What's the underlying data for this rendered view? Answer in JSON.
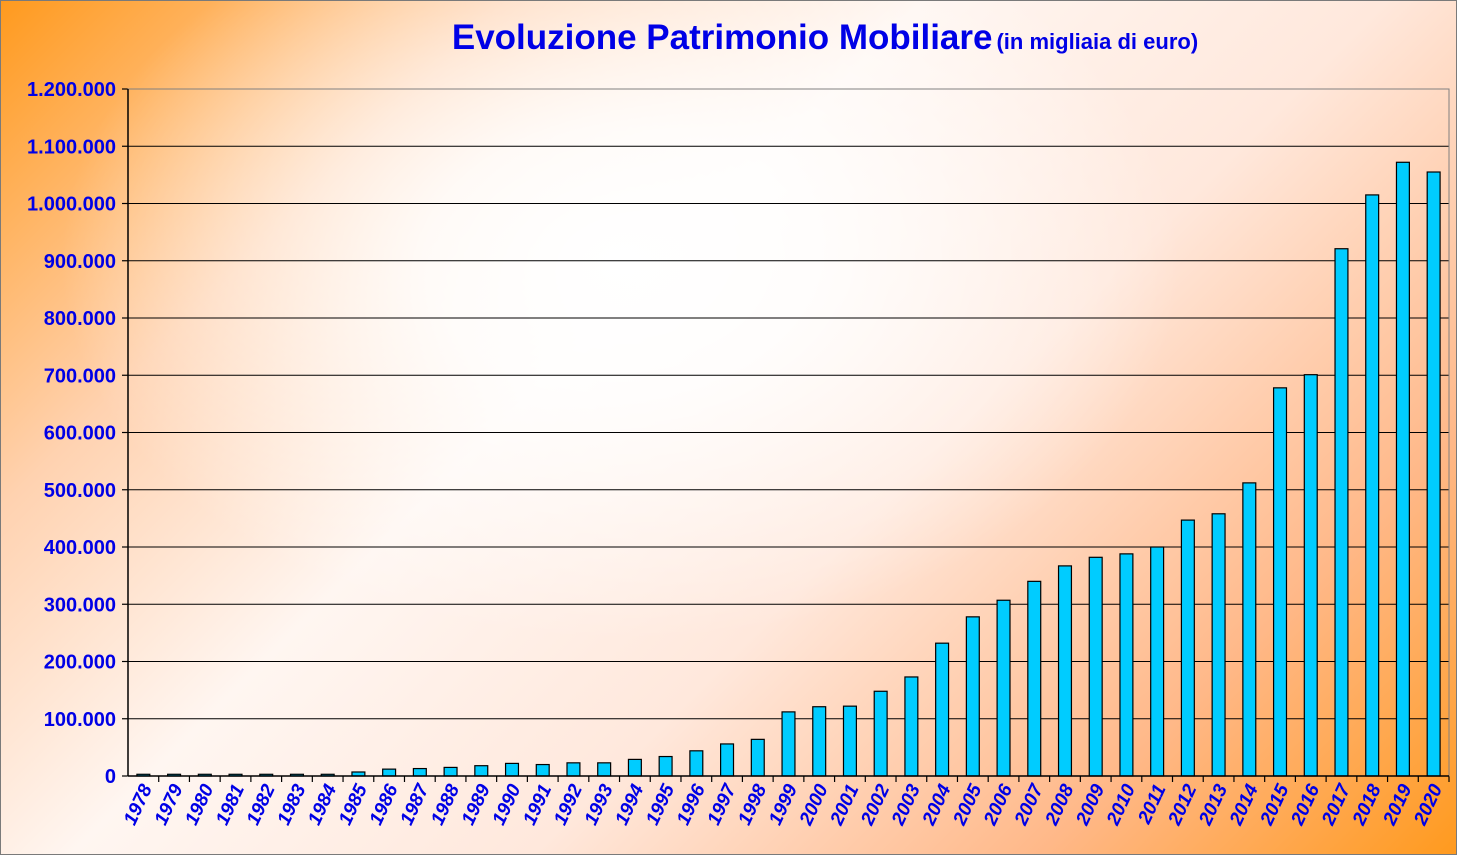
{
  "chart_data": {
    "type": "bar",
    "title": "Evoluzione Patrimonio Mobiliare",
    "subtitle": "(in migliaia di euro)",
    "xlabel": "",
    "ylabel": "",
    "ylim": [
      0,
      1200000
    ],
    "ytick_step": 100000,
    "yticks": [
      "0",
      "100.000",
      "200.000",
      "300.000",
      "400.000",
      "500.000",
      "600.000",
      "700.000",
      "800.000",
      "900.000",
      "1.000.000",
      "1.100.000",
      "1.200.000"
    ],
    "grid": true,
    "legend": "none",
    "bar_color": "#00ccff",
    "categories": [
      "1978",
      "1979",
      "1980",
      "1981",
      "1982",
      "1983",
      "1984",
      "1985",
      "1986",
      "1987",
      "1988",
      "1989",
      "1990",
      "1991",
      "1992",
      "1993",
      "1994",
      "1995",
      "1996",
      "1997",
      "1998",
      "1999",
      "2000",
      "2001",
      "2002",
      "2003",
      "2004",
      "2005",
      "2006",
      "2007",
      "2008",
      "2009",
      "2010",
      "2011",
      "2012",
      "2013",
      "2014",
      "2015",
      "2016",
      "2017",
      "2018",
      "2019",
      "2020"
    ],
    "values": [
      3000,
      3000,
      3000,
      3000,
      3000,
      3000,
      3000,
      7000,
      12000,
      13000,
      15000,
      18000,
      22000,
      20000,
      23000,
      23000,
      29000,
      34000,
      44000,
      56000,
      64000,
      112000,
      121000,
      122000,
      148000,
      173000,
      232000,
      278000,
      307000,
      340000,
      367000,
      382000,
      388000,
      400000,
      447000,
      458000,
      512000,
      678000,
      701000,
      921000,
      1015000,
      1072000,
      1055000
    ]
  }
}
